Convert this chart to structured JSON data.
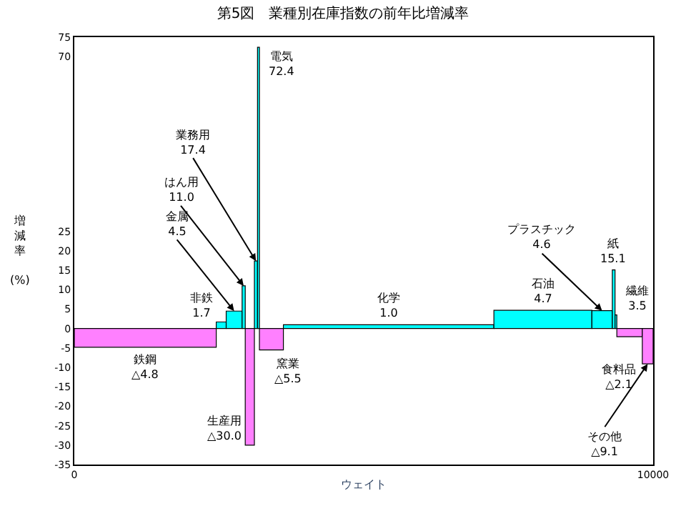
{
  "chart_data": {
    "type": "histogram",
    "title": "第5図　業種別在庫指数の前年比増減率",
    "xlabel": "ウェイト",
    "ylabel": "増減率 (%)",
    "bins": [
      0,
      2452,
      2624,
      2899,
      2953,
      3111,
      3165,
      3198,
      3612,
      7249,
      8942,
      9295,
      9342,
      9373,
      9813,
      10000
    ],
    "values": [
      -4.8,
      1.7,
      4.5,
      11.0,
      -30.0,
      17.4,
      72.4,
      -5.5,
      1.0,
      4.7,
      4.6,
      15.1,
      3.5,
      -2.1,
      -9.1
    ],
    "colors": [
      "#ff80ff",
      "#00ffff",
      "#00ffff",
      "#00ffff",
      "#ff80ff",
      "#00ffff",
      "#00ffff",
      "#ff80ff",
      "#00ffff",
      "#00ffff",
      "#00ffff",
      "#00ffff",
      "#00ffff",
      "#ff80ff",
      "#ff80ff"
    ],
    "xlim": [
      0,
      10000
    ],
    "xticks": [
      0,
      10000
    ],
    "ylim": [
      -35,
      75
    ],
    "yticks": [
      -35,
      -30,
      -25,
      -20,
      -15,
      -10,
      -5,
      0,
      5,
      10,
      15,
      20,
      25,
      70,
      75
    ],
    "annotations": [
      {
        "text": "鉄鋼\n△4.8",
        "x": 1226,
        "y": -4.8
      },
      {
        "text": "非鉄\n1.7",
        "x": 2538,
        "y": 1.7
      },
      {
        "text": "金属\n4.5",
        "x": 2761,
        "y": 4.5
      },
      {
        "text": "はん用\n11.0",
        "x": 2926,
        "y": 11.0
      },
      {
        "text": "生産用\n△30.0",
        "x": 3032,
        "y": -30.0
      },
      {
        "text": "業務用\n17.4",
        "x": 3138,
        "y": 17.4
      },
      {
        "text": "電気\n72.4",
        "x": 3181,
        "y": 72.4
      },
      {
        "text": "窯業\n△5.5",
        "x": 3405,
        "y": -5.5
      },
      {
        "text": "化学\n1.0",
        "x": 5430,
        "y": 1.0
      },
      {
        "text": "石油\n4.7",
        "x": 8095,
        "y": 4.7
      },
      {
        "text": "プラスチック\n4.6",
        "x": 9118,
        "y": 4.6
      },
      {
        "text": "紙\n15.1",
        "x": 9318,
        "y": 15.1
      },
      {
        "text": "繊維\n3.5",
        "x": 9357,
        "y": 3.5
      },
      {
        "text": "食料品\n△2.1",
        "x": 9593,
        "y": -2.1
      },
      {
        "text": "その他\n△9.1",
        "x": 9906,
        "y": -9.1
      }
    ]
  }
}
